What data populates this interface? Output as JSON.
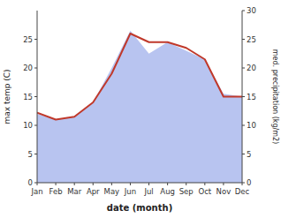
{
  "chart_data": {
    "type": "line",
    "categories": [
      "Jan",
      "Feb",
      "Mar",
      "Apr",
      "May",
      "Jun",
      "Jul",
      "Aug",
      "Sep",
      "Oct",
      "Nov",
      "Dec"
    ],
    "xlabel": "date (month)",
    "ylabel": "max temp (C)",
    "y2label": "med. precipitation (kg/m2)",
    "series": [
      {
        "type": "area",
        "axis": "y2",
        "color": "#b8c4f0",
        "values": [
          12.0,
          11.0,
          11.5,
          14.0,
          20.0,
          26.5,
          22.5,
          24.5,
          23.0,
          21.5,
          15.5,
          15.0
        ]
      },
      {
        "type": "line",
        "color": "#c0392b",
        "values": [
          12.2,
          11.0,
          11.5,
          14.0,
          19.0,
          26.0,
          24.5,
          24.5,
          23.5,
          21.5,
          15.0,
          15.0
        ]
      }
    ],
    "ylim": [
      0,
      30
    ],
    "yticks": [
      0,
      5,
      10,
      15,
      20,
      25
    ],
    "y2lim": [
      0,
      30
    ],
    "y2ticks": [
      0,
      5,
      10,
      15,
      20,
      25,
      30
    ],
    "grid": false
  }
}
